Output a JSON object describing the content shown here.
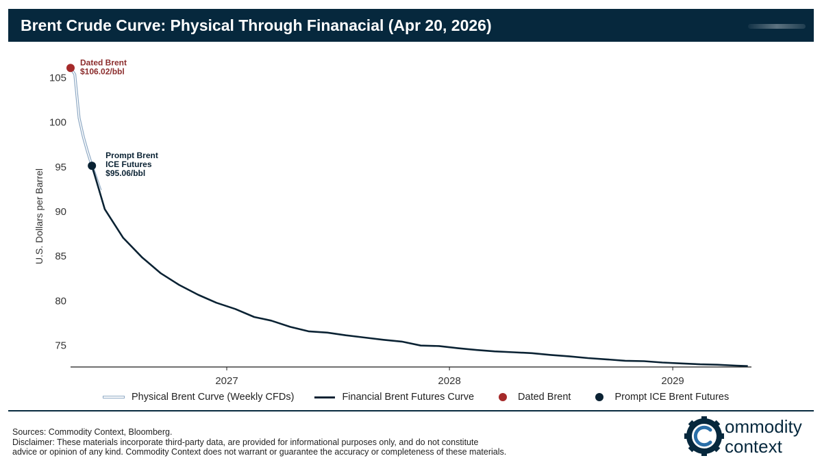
{
  "header": {
    "title": "Brent Crude Curve: Physical Through Finanacial (Apr 20, 2026)"
  },
  "chart_data": {
    "type": "line",
    "title": "Brent Crude Curve: Physical Through Finanacial (Apr 20, 2026)",
    "ylabel": "U.S. Dollars per Barrel",
    "xlabel": "",
    "ylim": [
      72.5,
      107.5
    ],
    "xlim": [
      "2026-04-20",
      "2029-05-10"
    ],
    "yticks": [
      75,
      80,
      85,
      90,
      95,
      100,
      105
    ],
    "xticks": [
      {
        "date": "2027-01-01",
        "label": "2027"
      },
      {
        "date": "2028-01-01",
        "label": "2028"
      },
      {
        "date": "2029-01-01",
        "label": "2029"
      }
    ],
    "grid": false,
    "legend_position": "bottom",
    "series": [
      {
        "name": "Physical Brent Curve (Weekly CFDs)",
        "color": "#8ea9c4",
        "style": "outlined-light",
        "points": [
          [
            "2026-04-20",
            106.02
          ],
          [
            "2026-04-27",
            105.3
          ],
          [
            "2026-05-04",
            100.4
          ],
          [
            "2026-05-11",
            98.3
          ],
          [
            "2026-05-18",
            96.6
          ],
          [
            "2026-05-25",
            95.06
          ],
          [
            "2026-06-01",
            93.7
          ],
          [
            "2026-06-08",
            92.3
          ]
        ]
      },
      {
        "name": "Financial Brent Futures Curve",
        "color": "#0a2233",
        "style": "solid",
        "points": [
          [
            "2026-05-25",
            95.06
          ],
          [
            "2026-06-15",
            90.2
          ],
          [
            "2026-07-15",
            87.0
          ],
          [
            "2026-08-15",
            84.8
          ],
          [
            "2026-09-15",
            83.0
          ],
          [
            "2026-10-15",
            81.7
          ],
          [
            "2026-11-15",
            80.6
          ],
          [
            "2026-12-15",
            79.7
          ],
          [
            "2027-01-15",
            79.0
          ],
          [
            "2027-02-15",
            78.1
          ],
          [
            "2027-03-15",
            77.7
          ],
          [
            "2027-04-15",
            77.0
          ],
          [
            "2027-05-15",
            76.5
          ],
          [
            "2027-06-15",
            76.35
          ],
          [
            "2027-07-15",
            76.05
          ],
          [
            "2027-08-15",
            75.8
          ],
          [
            "2027-09-15",
            75.55
          ],
          [
            "2027-10-15",
            75.35
          ],
          [
            "2027-11-15",
            74.9
          ],
          [
            "2027-12-15",
            74.85
          ],
          [
            "2028-01-15",
            74.6
          ],
          [
            "2028-02-15",
            74.4
          ],
          [
            "2028-03-15",
            74.25
          ],
          [
            "2028-04-15",
            74.15
          ],
          [
            "2028-05-15",
            74.05
          ],
          [
            "2028-06-15",
            73.85
          ],
          [
            "2028-07-15",
            73.7
          ],
          [
            "2028-08-15",
            73.5
          ],
          [
            "2028-09-15",
            73.35
          ],
          [
            "2028-10-15",
            73.2
          ],
          [
            "2028-11-15",
            73.15
          ],
          [
            "2028-12-15",
            73.0
          ],
          [
            "2029-01-15",
            72.9
          ],
          [
            "2029-02-15",
            72.8
          ],
          [
            "2029-03-15",
            72.75
          ],
          [
            "2029-04-15",
            72.65
          ],
          [
            "2029-05-04",
            72.6
          ]
        ]
      },
      {
        "name": "Dated Brent",
        "type": "marker",
        "color": "#a52a2a",
        "points": [
          [
            "2026-04-20",
            106.02
          ]
        ]
      },
      {
        "name": "Prompt ICE Brent Futures",
        "type": "marker",
        "color": "#0a2233",
        "points": [
          [
            "2026-05-25",
            95.06
          ]
        ]
      }
    ],
    "annotations": [
      {
        "series": "Dated Brent",
        "lines": [
          "Dated Brent",
          "$106.02/bbl"
        ],
        "color": "#8b2c2c"
      },
      {
        "series": "Prompt ICE Brent Futures",
        "lines": [
          "Prompt Brent",
          "ICE Futures",
          "$95.06/bbl"
        ],
        "color": "#0a2233"
      }
    ]
  },
  "legend": {
    "physical": "Physical Brent Curve (Weekly CFDs)",
    "financial": "Financial Brent Futures Curve",
    "dated": "Dated Brent",
    "prompt": "Prompt ICE Brent Futures"
  },
  "footer": {
    "sources": "Sources: Commodity Context, Bloomberg.",
    "disclaimer_line1": "Disclaimer: These materials incorporate third-party data, are provided for informational purposes only, and do not constitute",
    "disclaimer_line2": "advice or opinion of any kind. Commodity Context does not warrant or guarantee the accuracy or completeness of these materials."
  },
  "logo": {
    "line1": "ommodity",
    "line2": "context",
    "icon": "gear-c-icon"
  },
  "colors": {
    "navy": "#06283d",
    "physical": "#8ea9c4",
    "financial": "#0a2233",
    "dated": "#a52a2a"
  }
}
